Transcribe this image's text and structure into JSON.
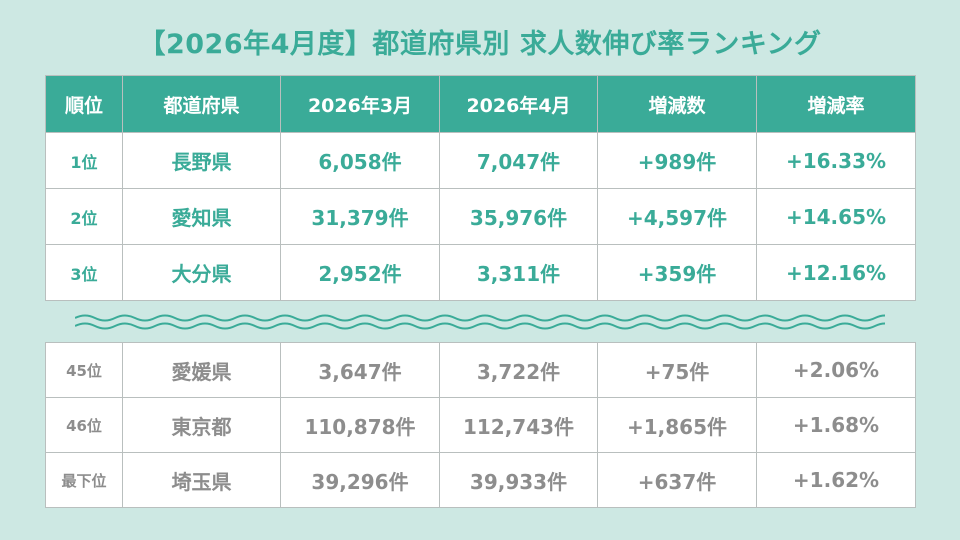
{
  "title": "【2026年4月度】都道府県別 求人数伸び率ランキング",
  "headers": [
    "順位",
    "都道府県",
    "2026年3月",
    "2026年4月",
    "増減数",
    "増減率"
  ],
  "top_rows": [
    {
      "rank": "1位",
      "prefecture": "長野県",
      "march": "6,058件",
      "april": "7,047件",
      "change": "+989件",
      "rate": "+16.33%"
    },
    {
      "rank": "2位",
      "prefecture": "愛知県",
      "march": "31,379件",
      "april": "35,976件",
      "change": "+4,597件",
      "rate": "+14.65%"
    },
    {
      "rank": "3位",
      "prefecture": "大分県",
      "march": "2,952件",
      "april": "3,311件",
      "change": "+359件",
      "rate": "+12.16%"
    }
  ],
  "bottom_rows": [
    {
      "rank": "45位",
      "prefecture": "愛媛県",
      "march": "3,647件",
      "april": "3,722件",
      "change": "+75件",
      "rate": "+2.06%"
    },
    {
      "rank": "46位",
      "prefecture": "東京都",
      "march": "110,878件",
      "april": "112,743件",
      "change": "+1,865件",
      "rate": "+1.68%"
    },
    {
      "rank": "最下位",
      "prefecture": "埼玉県",
      "march": "39,296件",
      "april": "39,933件",
      "change": "+637件",
      "rate": "+1.62%"
    }
  ],
  "colors": {
    "background": "#cde8e3",
    "accent": "#3aab98",
    "muted_text": "#8d8d8d",
    "border": "#b9bfbe"
  }
}
